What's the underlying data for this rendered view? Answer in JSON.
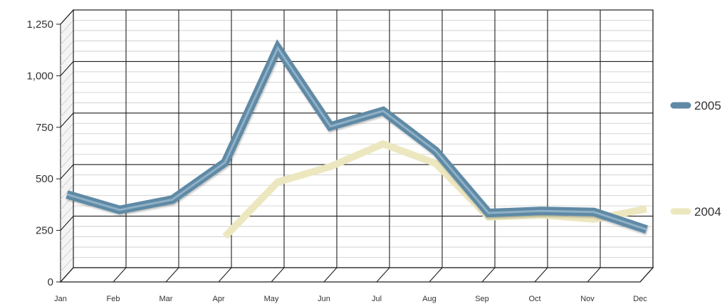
{
  "chart_data": {
    "type": "line",
    "title": "",
    "xlabel": "",
    "ylabel": "",
    "categories": [
      "Jan",
      "Feb",
      "Mar",
      "Apr",
      "May",
      "Jun",
      "Jul",
      "Aug",
      "Sep",
      "Oct",
      "Nov",
      "Dec"
    ],
    "y_ticks": [
      "0",
      "250",
      "500",
      "750",
      "1,000",
      "1,250"
    ],
    "ylim": [
      0,
      1250
    ],
    "grid": true,
    "legend_position": "right",
    "series": [
      {
        "name": "2005",
        "color": "#5f8aa6",
        "values": [
          390,
          315,
          365,
          545,
          1100,
          720,
          795,
          600,
          300,
          310,
          305,
          220
        ]
      },
      {
        "name": "2004",
        "color": "#ece7bf",
        "values": [
          null,
          null,
          null,
          185,
          450,
          525,
          635,
          540,
          280,
          290,
          270,
          320
        ]
      }
    ]
  }
}
